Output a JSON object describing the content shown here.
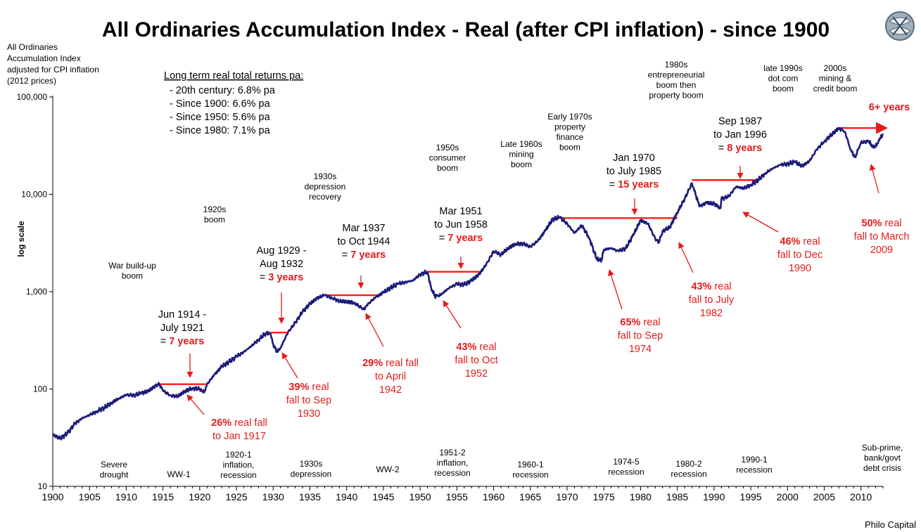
{
  "chart_data": {
    "type": "line",
    "title": "All Ordinaries Accumulation Index - Real (after CPI inflation) - since 1900",
    "ylabel": "log scale",
    "y_axis_title": [
      "All Ordinaries",
      "Accumulation Index",
      "adjusted for CPI inflation",
      "(2012 prices)"
    ],
    "y_scale": "log",
    "ylim": [
      10,
      100000
    ],
    "xlim": [
      1900,
      2013
    ],
    "y_ticks": [
      10,
      100,
      1000,
      10000,
      100000
    ],
    "y_tick_labels": [
      "10",
      "100",
      "1,000",
      "10,000",
      "100,000"
    ],
    "x_ticks": [
      1900,
      1905,
      1910,
      1915,
      1920,
      1925,
      1930,
      1935,
      1940,
      1945,
      1950,
      1955,
      1960,
      1965,
      1970,
      1975,
      1980,
      1985,
      1990,
      1995,
      2000,
      2005,
      2010
    ],
    "x_tick_labels": [
      "1900",
      "1905",
      "1910",
      "1915",
      "1920",
      "1925",
      "1930",
      "1935",
      "1940",
      "1945",
      "1950",
      "1955",
      "1960",
      "1965",
      "1970",
      "1975",
      "1980",
      "1985",
      "1990",
      "1995",
      "2000",
      "2005",
      "2010"
    ],
    "grid": false,
    "line_color": "#1c1c7a",
    "bar_color": "#ff1a1a",
    "series": [
      {
        "points": [
          [
            1900.0,
            34
          ],
          [
            1901.0,
            31
          ],
          [
            1902.0,
            35
          ],
          [
            1903.0,
            44
          ],
          [
            1904.0,
            50
          ],
          [
            1905.0,
            54
          ],
          [
            1906.0,
            59
          ],
          [
            1907.0,
            64
          ],
          [
            1908.0,
            72
          ],
          [
            1909.0,
            80
          ],
          [
            1910.0,
            87
          ],
          [
            1911.0,
            86
          ],
          [
            1912.0,
            90
          ],
          [
            1913.0,
            95
          ],
          [
            1914.0,
            108
          ],
          [
            1914.5,
            112
          ],
          [
            1915.0,
            96
          ],
          [
            1916.0,
            86
          ],
          [
            1917.0,
            84
          ],
          [
            1918.0,
            95
          ],
          [
            1919.0,
            102
          ],
          [
            1920.0,
            100
          ],
          [
            1920.6,
            92
          ],
          [
            1921.0,
            112
          ],
          [
            1922.0,
            140
          ],
          [
            1923.0,
            170
          ],
          [
            1924.0,
            190
          ],
          [
            1925.0,
            215
          ],
          [
            1926.0,
            240
          ],
          [
            1927.0,
            275
          ],
          [
            1928.0,
            320
          ],
          [
            1929.0,
            375
          ],
          [
            1929.6,
            370
          ],
          [
            1930.0,
            290
          ],
          [
            1930.5,
            240
          ],
          [
            1931.0,
            265
          ],
          [
            1932.0,
            380
          ],
          [
            1933.0,
            480
          ],
          [
            1934.0,
            620
          ],
          [
            1935.0,
            750
          ],
          [
            1936.0,
            860
          ],
          [
            1937.0,
            920
          ],
          [
            1938.0,
            860
          ],
          [
            1939.0,
            800
          ],
          [
            1940.0,
            790
          ],
          [
            1941.0,
            770
          ],
          [
            1942.3,
            660
          ],
          [
            1943.0,
            760
          ],
          [
            1944.0,
            880
          ],
          [
            1945.0,
            980
          ],
          [
            1946.0,
            1100
          ],
          [
            1947.0,
            1200
          ],
          [
            1948.0,
            1250
          ],
          [
            1949.0,
            1300
          ],
          [
            1950.0,
            1500
          ],
          [
            1951.0,
            1600
          ],
          [
            1951.5,
            1100
          ],
          [
            1952.0,
            900
          ],
          [
            1952.8,
            920
          ],
          [
            1953.0,
            960
          ],
          [
            1954.0,
            1100
          ],
          [
            1955.0,
            1200
          ],
          [
            1956.0,
            1180
          ],
          [
            1957.0,
            1300
          ],
          [
            1958.0,
            1500
          ],
          [
            1959.0,
            1900
          ],
          [
            1960.0,
            2600
          ],
          [
            1961.0,
            2400
          ],
          [
            1962.0,
            2800
          ],
          [
            1963.0,
            3100
          ],
          [
            1964.0,
            3100
          ],
          [
            1965.0,
            2900
          ],
          [
            1966.0,
            3300
          ],
          [
            1967.0,
            4200
          ],
          [
            1968.0,
            5500
          ],
          [
            1969.0,
            5800
          ],
          [
            1970.0,
            5000
          ],
          [
            1971.0,
            4000
          ],
          [
            1972.0,
            4800
          ],
          [
            1973.0,
            3600
          ],
          [
            1974.0,
            2200
          ],
          [
            1974.7,
            2100
          ],
          [
            1975.0,
            2700
          ],
          [
            1976.0,
            2800
          ],
          [
            1977.0,
            2600
          ],
          [
            1978.0,
            2800
          ],
          [
            1979.0,
            3800
          ],
          [
            1980.0,
            5400
          ],
          [
            1981.0,
            5000
          ],
          [
            1982.0,
            3500
          ],
          [
            1982.5,
            3200
          ],
          [
            1983.0,
            4200
          ],
          [
            1984.0,
            4600
          ],
          [
            1985.0,
            6500
          ],
          [
            1986.0,
            9000
          ],
          [
            1987.0,
            13000
          ],
          [
            1987.8,
            8500
          ],
          [
            1988.0,
            7500
          ],
          [
            1989.0,
            8200
          ],
          [
            1990.0,
            8000
          ],
          [
            1990.9,
            7200
          ],
          [
            1991.0,
            9000
          ],
          [
            1992.0,
            9500
          ],
          [
            1993.0,
            12000
          ],
          [
            1994.0,
            11500
          ],
          [
            1995.0,
            12500
          ],
          [
            1996.0,
            14000
          ],
          [
            1997.0,
            16500
          ],
          [
            1998.0,
            18500
          ],
          [
            1999.0,
            20000
          ],
          [
            2000.0,
            20500
          ],
          [
            2001.0,
            21500
          ],
          [
            2002.0,
            19500
          ],
          [
            2003.0,
            22000
          ],
          [
            2004.0,
            29000
          ],
          [
            2005.0,
            35000
          ],
          [
            2006.0,
            41000
          ],
          [
            2007.0,
            48000
          ],
          [
            2007.8,
            44000
          ],
          [
            2008.5,
            30000
          ],
          [
            2009.2,
            24000
          ],
          [
            2010.0,
            34000
          ],
          [
            2011.0,
            35000
          ],
          [
            2011.8,
            30000
          ],
          [
            2012.5,
            36000
          ],
          [
            2013.0,
            42000
          ]
        ]
      }
    ],
    "recovery_periods": [
      {
        "x0": 1914.5,
        "x1": 1921.0,
        "y": 112
      },
      {
        "x0": 1929.6,
        "x1": 1932.0,
        "y": 380
      },
      {
        "x0": 1937.0,
        "x1": 1944.3,
        "y": 920
      },
      {
        "x0": 1951.0,
        "x1": 1958.4,
        "y": 1600
      },
      {
        "x0": 1968.0,
        "x1": 1985.0,
        "y": 5700
      },
      {
        "x0": 1987.0,
        "x1": 1996.0,
        "y": 14000
      },
      {
        "x0": 2007.0,
        "x1": 2013.5,
        "y": 48000,
        "arrow": true
      }
    ],
    "returns_box": {
      "heading": "Long term real  total returns pa:",
      "lines": [
        "- 20th century: 6.8% pa",
        "- Since 1900:  6.6% pa",
        "- Since 1950:  5.6% pa",
        "- Since 1980:  7.1% pa"
      ]
    },
    "booms": [
      {
        "lines": [
          "War build-up",
          "boom"
        ]
      },
      {
        "lines": [
          "1920s",
          "boom"
        ]
      },
      {
        "lines": [
          "1930s",
          "depression",
          "recovery"
        ]
      },
      {
        "lines": [
          "1950s",
          "consumer",
          "boom"
        ]
      },
      {
        "lines": [
          "Late 1960s",
          "mining",
          "boom"
        ]
      },
      {
        "lines": [
          "Early 1970s",
          "property",
          "finance",
          "boom"
        ]
      },
      {
        "lines": [
          "1980s",
          "entrepreneurial",
          "boom then",
          "property boom"
        ]
      },
      {
        "lines": [
          "late 1990s",
          "dot com",
          "boom"
        ]
      },
      {
        "lines": [
          "2000s",
          "mining &",
          "credit boom"
        ]
      }
    ],
    "recessions": [
      {
        "lines": [
          "Severe",
          "drought"
        ]
      },
      {
        "lines": [
          "WW-1"
        ]
      },
      {
        "lines": [
          "1920-1",
          "inflation,",
          "recession"
        ]
      },
      {
        "lines": [
          "1930s",
          "depression"
        ]
      },
      {
        "lines": [
          "WW-2"
        ]
      },
      {
        "lines": [
          "1951-2",
          "inflation,",
          "recession"
        ]
      },
      {
        "lines": [
          "1960-1",
          "recession"
        ]
      },
      {
        "lines": [
          "1974-5",
          "recession"
        ]
      },
      {
        "lines": [
          "1980-2",
          "recession"
        ]
      },
      {
        "lines": [
          "1990-1",
          "recession"
        ]
      },
      {
        "lines": [
          "Sub-prime,",
          "bank/govt",
          "debt crisis"
        ]
      }
    ],
    "periods": [
      {
        "lines": [
          "Jun 1914 -",
          "July 1921"
        ],
        "eq": "= ",
        "years": "7 years"
      },
      {
        "lines": [
          "Aug 1929 -",
          "Aug 1932"
        ],
        "eq": "= ",
        "years": "3 years"
      },
      {
        "lines": [
          "Mar 1937",
          "to  Oct 1944"
        ],
        "eq": "= ",
        "years": "7 years"
      },
      {
        "lines": [
          "Mar 1951",
          "to  Jun 1958"
        ],
        "eq": "= ",
        "years": "7 years"
      },
      {
        "lines": [
          "Jan 1970",
          "to July 1985"
        ],
        "eq": "= ",
        "years": "15 years"
      },
      {
        "lines": [
          "Sep 1987",
          "to Jan 1996"
        ],
        "eq": "= ",
        "years": "8 years"
      },
      {
        "lines": [],
        "eq": "",
        "years": "6+  years"
      }
    ],
    "falls": [
      {
        "pct": "26%",
        "lines": [
          " real fall",
          "to Jan 1917"
        ]
      },
      {
        "pct": "39%",
        "lines": [
          " real",
          "fall to Sep",
          "1930"
        ]
      },
      {
        "pct": "29%",
        "lines": [
          " real fall",
          "to April",
          "1942"
        ]
      },
      {
        "pct": "43%",
        "lines": [
          " real",
          "fall to Oct",
          "1952"
        ]
      },
      {
        "pct": "65%",
        "lines": [
          " real",
          "fall to Sep",
          "1974"
        ]
      },
      {
        "pct": "43%",
        "lines": [
          " real",
          "fall to July",
          "1982"
        ]
      },
      {
        "pct": "46%",
        "lines": [
          " real",
          "fall to Dec",
          "1990"
        ]
      },
      {
        "pct": "50%",
        "lines": [
          " real",
          "fall to March",
          "2009"
        ]
      }
    ]
  },
  "footer": {
    "source": "Philo Capital"
  },
  "logo": {
    "icon": "philo-capital-logo-icon"
  }
}
